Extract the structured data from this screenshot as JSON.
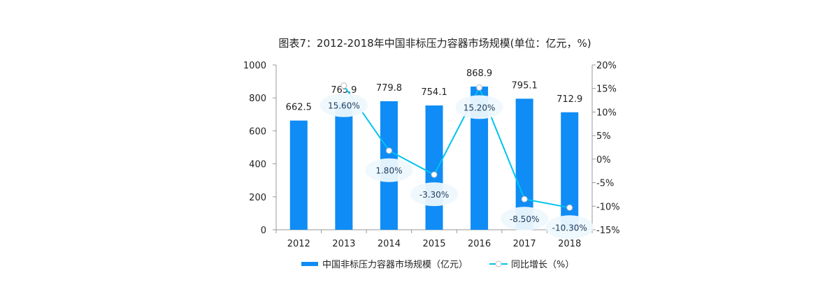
{
  "chart_data": {
    "type": "bar",
    "title": "图表7：2012-2018年中国非标压力容器市场规模(单位：亿元，%)",
    "categories": [
      "2012",
      "2013",
      "2014",
      "2015",
      "2016",
      "2017",
      "2018"
    ],
    "series": [
      {
        "name": "中国非标压力容器市场规模（亿元）",
        "type": "bar",
        "axis": "left",
        "color": "#0f8cf5",
        "values": [
          662.5,
          765.9,
          779.8,
          754.1,
          868.9,
          795.1,
          712.9
        ],
        "labels": [
          "662.5",
          "765.9",
          "779.8",
          "754.1",
          "868.9",
          "795.1",
          "712.9"
        ]
      },
      {
        "name": "同比增长（%）",
        "type": "line",
        "axis": "right",
        "color": "#00c3ef",
        "values": [
          null,
          15.6,
          1.8,
          -3.3,
          15.2,
          -8.5,
          -10.3
        ],
        "labels": [
          null,
          "15.60%",
          "1.80%",
          "-3.30%",
          "15.20%",
          "-8.50%",
          "-10.30%"
        ]
      }
    ],
    "y_left": {
      "min": 0,
      "max": 1000,
      "ticks": [
        "0",
        "200",
        "400",
        "600",
        "800",
        "1000"
      ]
    },
    "y_right": {
      "min": -15,
      "max": 20,
      "ticks": [
        "-15%",
        "-10%",
        "-5%",
        "0%",
        "5%",
        "10%",
        "15%",
        "20%"
      ]
    },
    "grid": false,
    "legend": "bottom"
  }
}
